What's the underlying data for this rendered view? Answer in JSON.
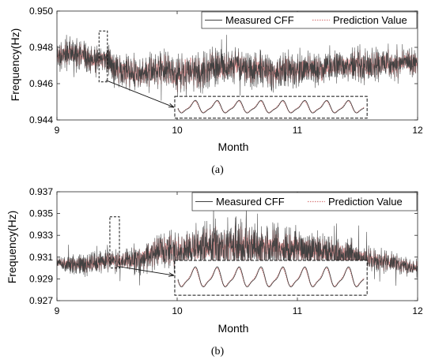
{
  "panels": [
    {
      "caption": "(a)",
      "chart_data": {
        "type": "line",
        "title": "",
        "xlabel": "Month",
        "ylabel": "Frequency(Hz)",
        "xlim": [
          9,
          12
        ],
        "ylim": [
          0.944,
          0.95
        ],
        "xticks": [
          9,
          10,
          11,
          12
        ],
        "xtick_labels": [
          "9",
          "10",
          "11",
          "12"
        ],
        "yticks": [
          0.944,
          0.946,
          0.948,
          0.95
        ],
        "ytick_labels": [
          "0.944",
          "0.946",
          "0.948",
          "0.950"
        ],
        "grid": false,
        "legend_placement": "top-right",
        "series": [
          {
            "name": "Measured CFF",
            "color": "#404040",
            "style": "solid",
            "x": [
              9.0,
              9.1,
              9.2,
              9.3,
              9.4,
              9.5,
              9.6,
              9.7,
              9.8,
              9.9,
              10.0,
              10.1,
              10.2,
              10.3,
              10.4,
              10.5,
              10.6,
              10.7,
              10.8,
              10.9,
              11.0,
              11.1,
              11.2,
              11.3,
              11.4,
              11.5,
              11.6,
              11.7,
              11.8,
              11.9,
              12.0
            ],
            "values": [
              0.9475,
              0.9477,
              0.9476,
              0.9472,
              0.9474,
              0.9468,
              0.9466,
              0.9465,
              0.9467,
              0.9468,
              0.9464,
              0.9467,
              0.9466,
              0.947,
              0.9468,
              0.9471,
              0.9467,
              0.9469,
              0.9465,
              0.9468,
              0.9467,
              0.9469,
              0.9468,
              0.947,
              0.947,
              0.9471,
              0.9469,
              0.9472,
              0.947,
              0.9473,
              0.947
            ],
            "band": [
              0.0011,
              0.0013,
              0.0012,
              0.001,
              0.0011,
              0.0012,
              0.0013,
              0.0012,
              0.0014,
              0.0013,
              0.0015,
              0.0013,
              0.0014,
              0.0012,
              0.0014,
              0.0012,
              0.0014,
              0.0015,
              0.0013,
              0.0014,
              0.0012,
              0.0013,
              0.0012,
              0.0011,
              0.0012,
              0.0012,
              0.0013,
              0.0011,
              0.0012,
              0.0011,
              0.001
            ]
          },
          {
            "name": "Prediction Value",
            "color": "#d98080",
            "style": "dotted",
            "x": [
              9.0,
              9.1,
              9.2,
              9.3,
              9.4,
              9.5,
              9.6,
              9.7,
              9.8,
              9.9,
              10.0,
              10.1,
              10.2,
              10.3,
              10.4,
              10.5,
              10.6,
              10.7,
              10.8,
              10.9,
              11.0,
              11.1,
              11.2,
              11.3,
              11.4,
              11.5,
              11.6,
              11.7,
              11.8,
              11.9,
              12.0
            ],
            "values": [
              0.9475,
              0.9477,
              0.9476,
              0.9472,
              0.9474,
              0.9468,
              0.9466,
              0.9465,
              0.9467,
              0.9468,
              0.9464,
              0.9467,
              0.9466,
              0.947,
              0.9468,
              0.9471,
              0.9467,
              0.9469,
              0.9465,
              0.9468,
              0.9467,
              0.9469,
              0.9468,
              0.947,
              0.947,
              0.9471,
              0.9469,
              0.9472,
              0.947,
              0.9473,
              0.947
            ],
            "band": [
              0.0009,
              0.001,
              0.001,
              0.0009,
              0.0009,
              0.001,
              0.0011,
              0.001,
              0.0011,
              0.0011,
              0.0012,
              0.0011,
              0.0011,
              0.001,
              0.0011,
              0.001,
              0.0011,
              0.0012,
              0.0011,
              0.0011,
              0.001,
              0.0011,
              0.001,
              0.0009,
              0.001,
              0.001,
              0.0011,
              0.0009,
              0.001,
              0.0009,
              0.0009
            ]
          }
        ],
        "annotations": {
          "zoom_window_x": [
            9.37,
            9.4
          ],
          "zoom_window_y": [
            0.9461,
            0.9489
          ],
          "inset_x": [
            9.98,
            11.58
          ],
          "inset_y": [
            0.9441,
            0.9453
          ]
        }
      }
    },
    {
      "caption": "(b)",
      "chart_data": {
        "type": "line",
        "title": "",
        "xlabel": "Month",
        "ylabel": "Frequency(Hz)",
        "xlim": [
          9,
          12
        ],
        "ylim": [
          0.927,
          0.937
        ],
        "xticks": [
          9,
          10,
          11,
          12
        ],
        "xtick_labels": [
          "9",
          "10",
          "11",
          "12"
        ],
        "yticks": [
          0.927,
          0.929,
          0.931,
          0.933,
          0.935,
          0.937
        ],
        "ytick_labels": [
          "0.927",
          "0.929",
          "0.931",
          "0.933",
          "0.935",
          "0.937"
        ],
        "grid": false,
        "legend_placement": "top-right",
        "series": [
          {
            "name": "Measured CFF",
            "color": "#404040",
            "style": "solid",
            "x": [
              9.0,
              9.1,
              9.2,
              9.3,
              9.4,
              9.5,
              9.6,
              9.7,
              9.8,
              9.9,
              10.0,
              10.1,
              10.2,
              10.3,
              10.4,
              10.5,
              10.6,
              10.7,
              10.8,
              10.9,
              11.0,
              11.1,
              11.2,
              11.3,
              11.4,
              11.5,
              11.6,
              11.7,
              11.8,
              11.9,
              12.0
            ],
            "values": [
              0.9305,
              0.9304,
              0.9303,
              0.9304,
              0.9306,
              0.9307,
              0.9306,
              0.9309,
              0.9315,
              0.9316,
              0.9316,
              0.9318,
              0.9318,
              0.932,
              0.9319,
              0.932,
              0.9321,
              0.9318,
              0.9321,
              0.9317,
              0.9318,
              0.9316,
              0.9314,
              0.9315,
              0.9312,
              0.931,
              0.9308,
              0.9306,
              0.9305,
              0.9302,
              0.93
            ],
            "band": [
              0.0009,
              0.0012,
              0.0014,
              0.0015,
              0.0013,
              0.0014,
              0.0016,
              0.0018,
              0.002,
              0.0022,
              0.0024,
              0.0025,
              0.0027,
              0.0028,
              0.0028,
              0.0029,
              0.003,
              0.0029,
              0.0028,
              0.0029,
              0.0027,
              0.0026,
              0.0024,
              0.0022,
              0.002,
              0.0018,
              0.0016,
              0.0014,
              0.0012,
              0.0011,
              0.001
            ]
          },
          {
            "name": "Prediction Value",
            "color": "#d98080",
            "style": "dotted",
            "x": [
              9.0,
              9.1,
              9.2,
              9.3,
              9.4,
              9.5,
              9.6,
              9.7,
              9.8,
              9.9,
              10.0,
              10.1,
              10.2,
              10.3,
              10.4,
              10.5,
              10.6,
              10.7,
              10.8,
              10.9,
              11.0,
              11.1,
              11.2,
              11.3,
              11.4,
              11.5,
              11.6,
              11.7,
              11.8,
              11.9,
              12.0
            ],
            "values": [
              0.9305,
              0.9304,
              0.9303,
              0.9304,
              0.9306,
              0.9307,
              0.9306,
              0.9309,
              0.9315,
              0.9316,
              0.9316,
              0.9318,
              0.9318,
              0.932,
              0.9319,
              0.932,
              0.9321,
              0.9318,
              0.9321,
              0.9317,
              0.9318,
              0.9316,
              0.9314,
              0.9315,
              0.9312,
              0.931,
              0.9308,
              0.9306,
              0.9305,
              0.9302,
              0.93
            ],
            "band": [
              0.0007,
              0.0009,
              0.0011,
              0.0012,
              0.0011,
              0.0012,
              0.0013,
              0.0015,
              0.0017,
              0.0019,
              0.002,
              0.0021,
              0.0022,
              0.0023,
              0.0023,
              0.0024,
              0.0025,
              0.0024,
              0.0023,
              0.0024,
              0.0022,
              0.0021,
              0.002,
              0.0018,
              0.0017,
              0.0015,
              0.0013,
              0.0012,
              0.001,
              0.0009,
              0.0008
            ]
          }
        ],
        "annotations": {
          "zoom_window_x": [
            9.46,
            9.5
          ],
          "zoom_window_y": [
            0.93,
            0.9347
          ],
          "inset_x": [
            9.98,
            11.58
          ],
          "inset_y": [
            0.9275,
            0.9307
          ]
        }
      }
    }
  ]
}
